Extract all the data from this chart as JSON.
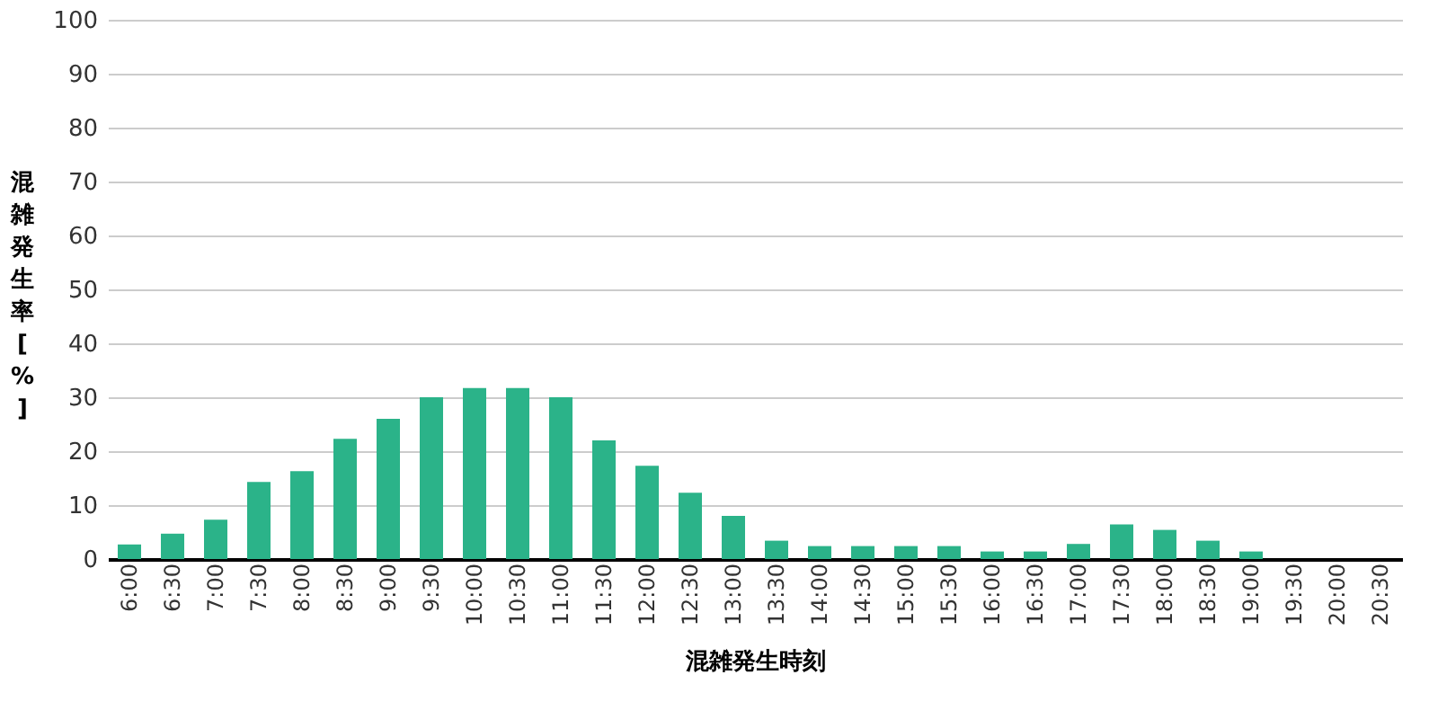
{
  "chart_data": {
    "type": "bar",
    "xlabel": "混雑発生時刻",
    "ylabel": "混雑発生率[%]",
    "categories": [
      "6:00",
      "6:30",
      "7:00",
      "7:30",
      "8:00",
      "8:30",
      "9:00",
      "9:30",
      "10:00",
      "10:30",
      "11:00",
      "11:30",
      "12:00",
      "12:30",
      "13:00",
      "13:30",
      "14:00",
      "14:30",
      "15:00",
      "15:30",
      "16:00",
      "16:30",
      "17:00",
      "17:30",
      "18:00",
      "18:30",
      "19:00",
      "19:30",
      "20:00",
      "20:30"
    ],
    "values": [
      2.7,
      4.7,
      7.3,
      14.3,
      16.3,
      22.3,
      26,
      30,
      31.7,
      31.7,
      30,
      22,
      17.3,
      12.3,
      8,
      3.4,
      2.4,
      2.4,
      2.4,
      2.4,
      1.4,
      1.4,
      2.8,
      6.4,
      5.4,
      3.4,
      1.4,
      0,
      0,
      0
    ],
    "color": "#2bb389",
    "ylim": [
      0,
      100
    ],
    "yticks": [
      0,
      10,
      20,
      30,
      40,
      50,
      60,
      70,
      80,
      90,
      100
    ],
    "grid": "y"
  }
}
